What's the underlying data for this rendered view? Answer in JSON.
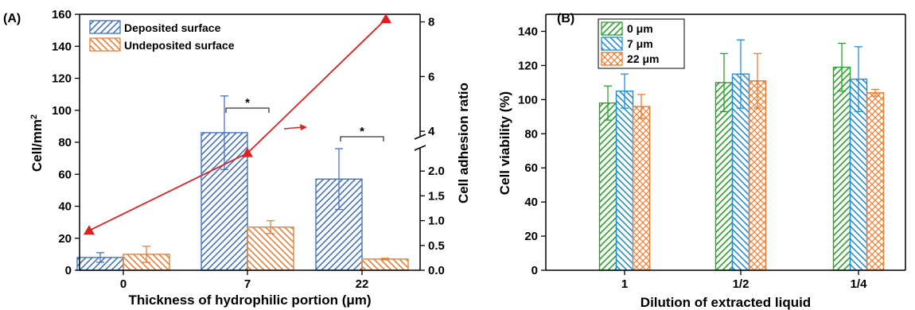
{
  "chart_data": [
    {
      "type": "bar",
      "panel_label": "(A)",
      "xlabel": "Thickness of hydrophilic portion (μm)",
      "ylabel": "Cell/mm²",
      "y2label": "Cell adhesion ratio",
      "categories": [
        "0",
        "7",
        "22"
      ],
      "ylim": [
        0,
        160
      ],
      "yticks": [
        "0",
        "20",
        "40",
        "60",
        "80",
        "100",
        "120",
        "140",
        "160"
      ],
      "y2ticks_lower": [
        "0.0",
        "0.5",
        "1.0",
        "1.5",
        "2.0"
      ],
      "y2ticks_upper": [
        "4",
        "6",
        "8"
      ],
      "y2_break": true,
      "grid": false,
      "legend_position": "top-left",
      "series": [
        {
          "name": "Deposited surface",
          "values": [
            8,
            86,
            57
          ],
          "errors": [
            3,
            23,
            19
          ],
          "color": "#4472c4",
          "pattern": "diagonal"
        },
        {
          "name": "Undeposited surface",
          "values": [
            10,
            27,
            7
          ],
          "errors": [
            5,
            4,
            0.5
          ],
          "color": "#ed7d31",
          "pattern": "back-diagonal"
        }
      ],
      "ratio_line": {
        "values": [
          0.8,
          3.2,
          8.1
        ],
        "color": "#e02020",
        "marker": "triangle"
      },
      "annotations": [
        {
          "text": "*",
          "between": [
            "7",
            "7"
          ]
        },
        {
          "text": "*",
          "between": [
            "22",
            "22"
          ]
        }
      ]
    },
    {
      "type": "bar",
      "panel_label": "(B)",
      "xlabel": "Dilution of extracted liquid",
      "ylabel": "Cell viability (%)",
      "categories": [
        "1",
        "1/2",
        "1/4"
      ],
      "ylim": [
        0,
        150
      ],
      "yticks": [
        "0",
        "20",
        "40",
        "60",
        "80",
        "100",
        "120",
        "140"
      ],
      "grid": false,
      "legend_position": "top-left",
      "series": [
        {
          "name": "0 μm",
          "values": [
            98,
            110,
            119
          ],
          "errors": [
            10,
            17,
            14
          ],
          "color": "#2ca02c",
          "pattern": "diagonal"
        },
        {
          "name": "7 μm",
          "values": [
            105,
            115,
            112
          ],
          "errors": [
            10,
            20,
            19
          ],
          "color": "#1f8fd8",
          "pattern": "back-diagonal"
        },
        {
          "name": "22 μm",
          "values": [
            96,
            111,
            104
          ],
          "errors": [
            7,
            16,
            2
          ],
          "color": "#ed7d31",
          "pattern": "crosshatch"
        }
      ]
    }
  ]
}
